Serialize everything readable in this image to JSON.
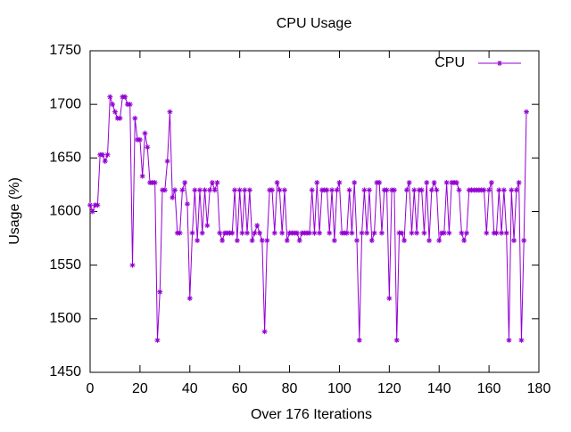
{
  "chart_data": {
    "type": "line",
    "title": "CPU Usage",
    "x_label": "Over 176 Iterations",
    "y_label": "Usage (%)",
    "legend_position": "top-right",
    "xlim": [
      0,
      180
    ],
    "xticks": [
      0,
      20,
      40,
      60,
      80,
      100,
      120,
      140,
      160,
      180
    ],
    "ylim": [
      1450,
      1750
    ],
    "yticks": [
      1450,
      1500,
      1550,
      1600,
      1650,
      1700,
      1750
    ],
    "x": [
      0,
      1,
      2,
      3,
      4,
      5,
      6,
      7,
      8,
      9,
      10,
      11,
      12,
      13,
      14,
      15,
      16,
      17,
      18,
      19,
      20,
      21,
      22,
      23,
      24,
      25,
      26,
      27,
      28,
      29,
      30,
      31,
      32,
      33,
      34,
      35,
      36,
      37,
      38,
      39,
      40,
      41,
      42,
      43,
      44,
      45,
      46,
      47,
      48,
      49,
      50,
      51,
      52,
      53,
      54,
      55,
      56,
      57,
      58,
      59,
      60,
      61,
      62,
      63,
      64,
      65,
      66,
      67,
      68,
      69,
      70,
      71,
      72,
      73,
      74,
      75,
      76,
      77,
      78,
      79,
      80,
      81,
      82,
      83,
      84,
      85,
      86,
      87,
      88,
      89,
      90,
      91,
      92,
      93,
      94,
      95,
      96,
      97,
      98,
      99,
      100,
      101,
      102,
      103,
      104,
      105,
      106,
      107,
      108,
      109,
      110,
      111,
      112,
      113,
      114,
      115,
      116,
      117,
      118,
      119,
      120,
      121,
      122,
      123,
      124,
      125,
      126,
      127,
      128,
      129,
      130,
      131,
      132,
      133,
      134,
      135,
      136,
      137,
      138,
      139,
      140,
      141,
      142,
      143,
      144,
      145,
      146,
      147,
      148,
      149,
      150,
      151,
      152,
      153,
      154,
      155,
      156,
      157,
      158,
      159,
      160,
      161,
      162,
      163,
      164,
      165,
      166,
      167,
      168,
      169,
      170,
      171,
      172,
      173,
      174,
      175
    ],
    "series": [
      {
        "name": "CPU",
        "color": "#9400d3",
        "values": [
          1606,
          1600,
          1606,
          1606,
          1653,
          1653,
          1647,
          1653,
          1707,
          1700,
          1693,
          1687,
          1687,
          1707,
          1707,
          1700,
          1700,
          1550,
          1687,
          1667,
          1667,
          1633,
          1673,
          1660,
          1627,
          1627,
          1627,
          1480,
          1525,
          1620,
          1620,
          1647,
          1693,
          1613,
          1620,
          1580,
          1580,
          1620,
          1627,
          1607,
          1519,
          1580,
          1620,
          1573,
          1620,
          1580,
          1620,
          1587,
          1620,
          1627,
          1620,
          1627,
          1580,
          1573,
          1580,
          1580,
          1580,
          1580,
          1620,
          1573,
          1620,
          1580,
          1620,
          1580,
          1620,
          1573,
          1580,
          1587,
          1580,
          1573,
          1488,
          1573,
          1620,
          1620,
          1580,
          1627,
          1620,
          1580,
          1620,
          1573,
          1580,
          1580,
          1580,
          1580,
          1573,
          1580,
          1580,
          1580,
          1580,
          1620,
          1580,
          1627,
          1580,
          1620,
          1620,
          1620,
          1580,
          1620,
          1573,
          1620,
          1627,
          1580,
          1580,
          1580,
          1620,
          1580,
          1627,
          1573,
          1480,
          1580,
          1620,
          1580,
          1620,
          1573,
          1580,
          1627,
          1627,
          1580,
          1620,
          1620,
          1519,
          1620,
          1620,
          1480,
          1580,
          1580,
          1573,
          1620,
          1627,
          1580,
          1620,
          1580,
          1620,
          1620,
          1580,
          1627,
          1573,
          1620,
          1627,
          1620,
          1573,
          1580,
          1580,
          1627,
          1580,
          1627,
          1627,
          1627,
          1620,
          1580,
          1573,
          1580,
          1620,
          1620,
          1620,
          1620,
          1620,
          1620,
          1620,
          1580,
          1620,
          1627,
          1580,
          1580,
          1620,
          1580,
          1620,
          1580,
          1480,
          1620,
          1573,
          1620,
          1627,
          1480,
          1573,
          1693
        ]
      }
    ]
  }
}
